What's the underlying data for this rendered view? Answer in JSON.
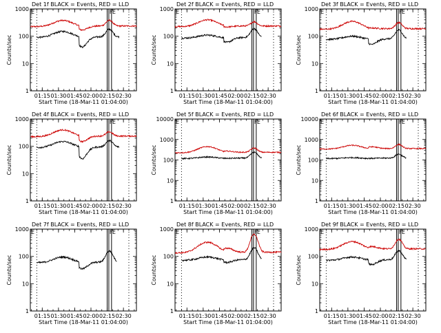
{
  "chart_data": {
    "type": "line",
    "panel_title_template": "Det {n}f BLACK = Events, RED = LLD",
    "xlabel": "Start Time (18-Mar-11 01:04:00)",
    "ylabel": "Counts/sec",
    "x_ticks": [
      "01:15",
      "01:30",
      "01:45",
      "02:00",
      "02:15",
      "02:30"
    ],
    "x_tick_minutes": [
      11,
      26,
      41,
      56,
      71,
      86
    ],
    "x_range_minutes": [
      0,
      98
    ],
    "y_ticks": [
      "1",
      "10",
      "100",
      "1000"
    ],
    "y_tick_values_top": [
      "10000"
    ],
    "yscale": "log",
    "markers": [
      {
        "label": "F",
        "minute": 72.5
      },
      {
        "label": "E",
        "minute": 75
      }
    ],
    "dotted_lines_minutes": [
      6,
      91
    ],
    "solid_lines_minutes": [
      71,
      72.5,
      75
    ],
    "series": [
      {
        "name": "Events",
        "color": "#000000"
      },
      {
        "name": "LLD",
        "color": "#cc0000"
      }
    ],
    "panels": [
      {
        "n": "1",
        "ymax": 1000,
        "events": {
          "start": 6,
          "end": 82,
          "base": 100,
          "dip": 40,
          "peak": 150,
          "high": 190
        },
        "lld": {
          "start": 0,
          "end": 98,
          "base": 250,
          "dip": 170,
          "peak": 380,
          "high": 400
        }
      },
      {
        "n": "2",
        "ymax": 1000,
        "events": {
          "start": 6,
          "end": 80,
          "base": 95,
          "dip": 60,
          "peak": 110,
          "high": 200
        },
        "lld": {
          "start": 0,
          "end": 98,
          "base": 250,
          "dip": 220,
          "peak": 400,
          "high": 350
        }
      },
      {
        "n": "3",
        "ymax": 1000,
        "events": {
          "start": 6,
          "end": 80,
          "base": 85,
          "dip": 50,
          "peak": 100,
          "high": 180
        },
        "lld": {
          "start": 0,
          "end": 98,
          "base": 200,
          "dip": 200,
          "peak": 350,
          "high": 330
        }
      },
      {
        "n": "4",
        "ymax": 1000,
        "events": {
          "start": 6,
          "end": 82,
          "base": 100,
          "dip": 35,
          "peak": 150,
          "high": 170
        },
        "lld": {
          "start": 0,
          "end": 98,
          "base": 250,
          "dip": 150,
          "peak": 400,
          "high": 350
        }
      },
      {
        "n": "5",
        "ymax": 10000,
        "events": {
          "start": 6,
          "end": 80,
          "base": 130,
          "dip": 120,
          "peak": 140,
          "high": 250
        },
        "lld": {
          "start": 0,
          "end": 98,
          "base": 250,
          "dip": 270,
          "peak": 450,
          "high": 400
        }
      },
      {
        "n": "6",
        "ymax": 10000,
        "events": {
          "start": 6,
          "end": 80,
          "base": 130,
          "dip": 120,
          "peak": 130,
          "high": 200
        },
        "lld": {
          "start": 0,
          "end": 98,
          "base": 380,
          "dip": 440,
          "peak": 520,
          "high": 600
        }
      },
      {
        "n": "7",
        "ymax": 1000,
        "events": {
          "start": 6,
          "end": 80,
          "base": 65,
          "dip": 35,
          "peak": 95,
          "high": 170
        },
        "lld": null
      },
      {
        "n": "8",
        "ymax": 1000,
        "events": {
          "start": 6,
          "end": 80,
          "base": 80,
          "dip": 60,
          "peak": 95,
          "high": 220
        },
        "lld": {
          "start": 0,
          "end": 98,
          "base": 150,
          "dip": 200,
          "peak": 330,
          "high": 700
        }
      },
      {
        "n": "9",
        "ymax": 1000,
        "events": {
          "start": 6,
          "end": 80,
          "base": 80,
          "dip": 50,
          "peak": 95,
          "high": 170
        },
        "lld": {
          "start": 0,
          "end": 98,
          "base": 200,
          "dip": 230,
          "peak": 350,
          "high": 450
        }
      }
    ]
  }
}
